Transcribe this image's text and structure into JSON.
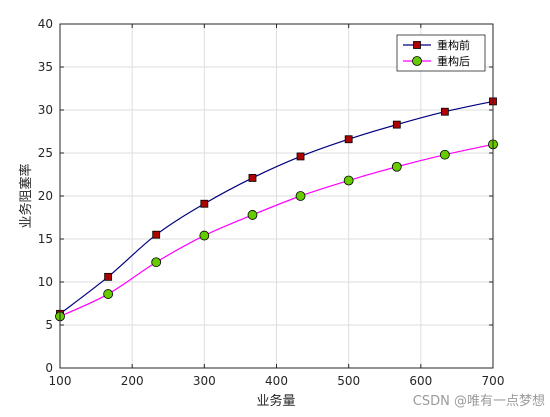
{
  "chart_data": {
    "type": "line",
    "xlabel": "业务量",
    "ylabel": "业务阻塞率",
    "xlim": [
      100,
      700
    ],
    "ylim": [
      0,
      40
    ],
    "xticks": [
      100,
      200,
      300,
      400,
      500,
      600,
      700
    ],
    "yticks": [
      0,
      5,
      10,
      15,
      20,
      25,
      30,
      35,
      40
    ],
    "grid": true,
    "legend_position": "top-right",
    "x": [
      100,
      166.7,
      233.3,
      300,
      366.7,
      433.3,
      500,
      566.7,
      633.3,
      700
    ],
    "series": [
      {
        "name": "重构前",
        "values": [
          6.3,
          10.6,
          15.5,
          19.1,
          22.1,
          24.6,
          26.6,
          28.3,
          29.8,
          31.0
        ],
        "line_color": "#00007f",
        "marker": "square",
        "marker_color": "#b00000"
      },
      {
        "name": "重构后",
        "values": [
          6.0,
          8.6,
          12.3,
          15.4,
          17.8,
          20.0,
          21.8,
          23.4,
          24.8,
          26.0
        ],
        "line_color": "#ff00ff",
        "marker": "circle",
        "marker_color": "#66cc00"
      }
    ]
  },
  "watermark": "CSDN @唯有一点梦想"
}
